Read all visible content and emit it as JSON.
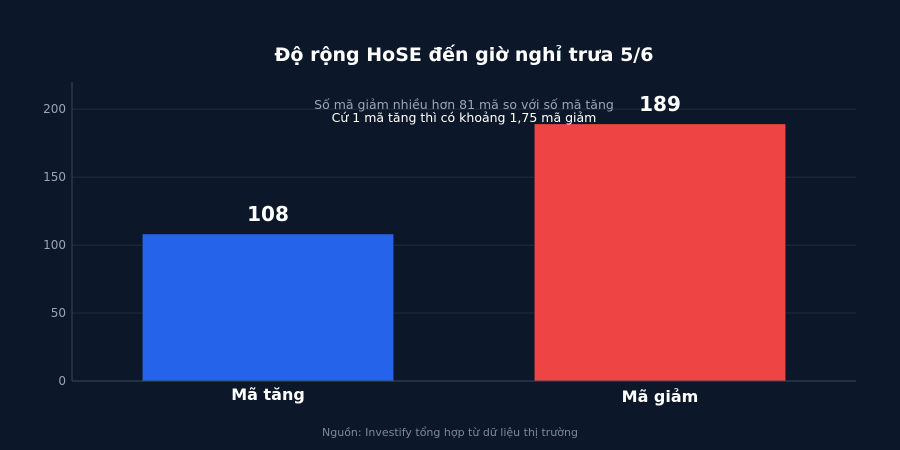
{
  "chart_data": {
    "type": "bar",
    "title": "Độ rộng HoSE đến giờ nghỉ trưa 5/6",
    "categories": [
      "Mã tăng",
      "Mã giảm"
    ],
    "values": [
      108,
      189
    ],
    "data_labels": [
      "108",
      "189"
    ],
    "colors": [
      "#2563eb",
      "#ef4444"
    ],
    "ylim": [
      0,
      220
    ],
    "yticks": [
      0,
      50,
      100,
      150,
      200
    ],
    "grid": true,
    "annotations": [
      "Số mã giảm nhiều hơn 81 mã so với số mã tăng",
      "Cứ 1 mã tăng thì có khoảng 1,75 mã giảm"
    ],
    "source": "Nguồn: Investify tổng hợp từ dữ liệu thị trường"
  }
}
